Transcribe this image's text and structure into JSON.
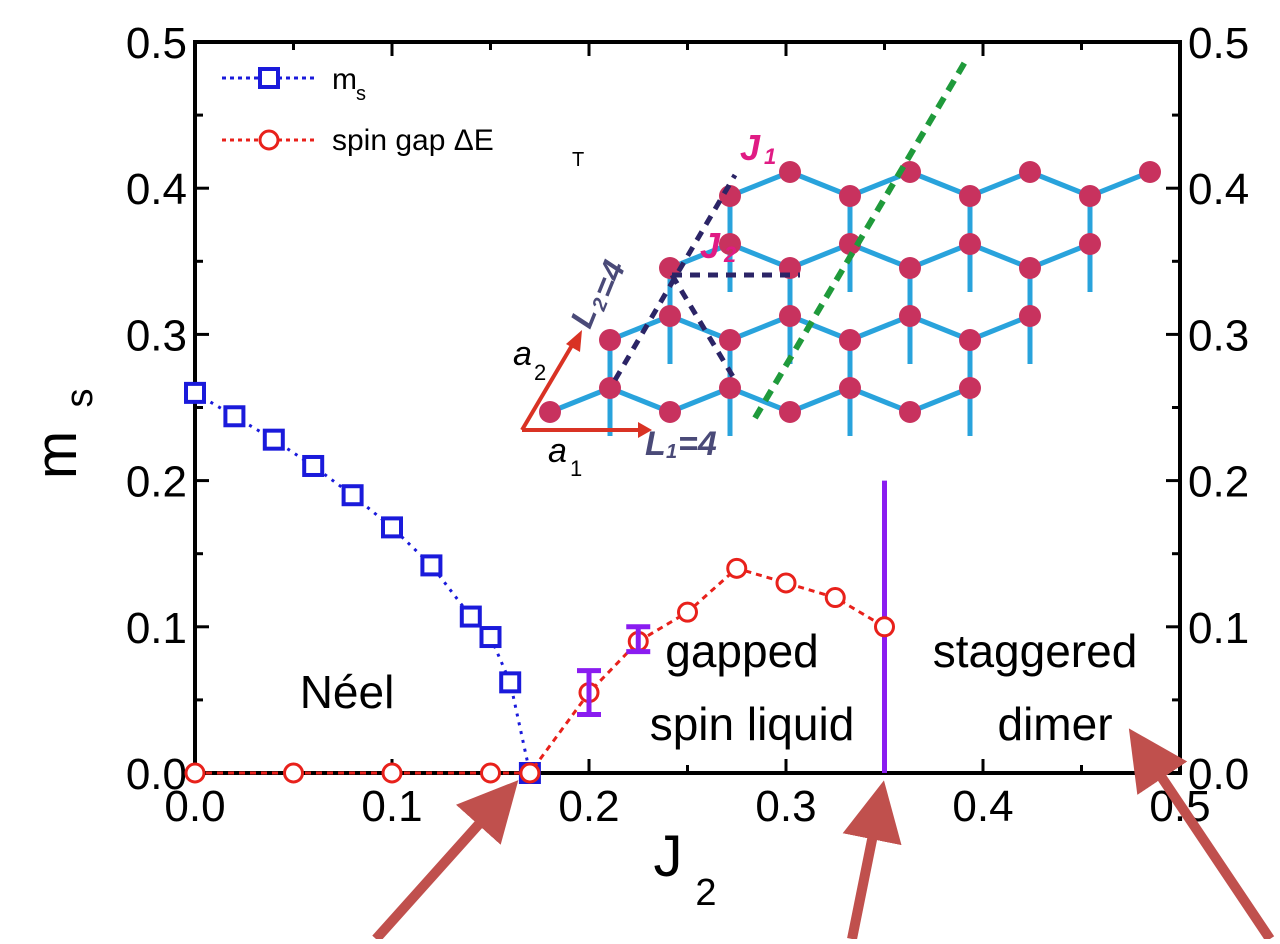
{
  "colors": {
    "ms": "#1a1adb",
    "gap": "#e8211b",
    "errorbar": "#8a1cf0",
    "boundary": "#8a1cf0",
    "arrow": "#c0504d",
    "bond": "#29a3dc",
    "site": "#c8325e",
    "dashed_dark": "#2b2466",
    "dashed_green": "#1f9a3b",
    "inset_J": "#e01b84",
    "inset_L": "#4a4a78",
    "inset_vec": "#d93224"
  },
  "chart_data": {
    "type": "line",
    "xlabel": "J",
    "xlabel_sub": "2",
    "ylabel": "m",
    "ylabel_sub": "s",
    "xlim": [
      0,
      0.5
    ],
    "ylim": [
      0,
      0.5
    ],
    "x_ticks": [
      "0.0",
      "0.1",
      "0.2",
      "0.3",
      "0.4",
      "0.5"
    ],
    "y_ticks_left": [
      "0.0",
      "0.1",
      "0.2",
      "0.3",
      "0.4",
      "0.5"
    ],
    "y_ticks_right": [
      "0.0",
      "0.1",
      "0.2",
      "0.3",
      "0.4",
      "0.5"
    ],
    "legend": {
      "placement": "top-left",
      "entries": [
        {
          "label": "m",
          "sub": "s"
        },
        {
          "label": "spin gap ΔE",
          "sub": "T"
        }
      ]
    },
    "series": [
      {
        "name": "m_s",
        "marker": "square",
        "x": [
          0.0,
          0.02,
          0.04,
          0.06,
          0.08,
          0.1,
          0.12,
          0.14,
          0.15,
          0.16,
          0.17
        ],
        "y": [
          0.26,
          0.244,
          0.228,
          0.21,
          0.19,
          0.168,
          0.142,
          0.107,
          0.093,
          0.062,
          0.0
        ]
      },
      {
        "name": "spin gap ΔE_T",
        "marker": "circle",
        "x": [
          0.0,
          0.05,
          0.1,
          0.15,
          0.17,
          0.2,
          0.225,
          0.25,
          0.275,
          0.3,
          0.325,
          0.35
        ],
        "y": [
          0.0,
          0.0,
          0.0,
          0.0,
          0.0,
          0.055,
          0.09,
          0.11,
          0.14,
          0.13,
          0.12,
          0.1
        ]
      }
    ],
    "error_bars": [
      {
        "x": 0.2,
        "low": 0.04,
        "high": 0.07
      },
      {
        "x": 0.225,
        "low": 0.083,
        "high": 0.1
      }
    ],
    "phase_boundary": {
      "x": 0.35,
      "y_top": 0.2
    },
    "regions": [
      {
        "lines": [
          "Néel"
        ]
      },
      {
        "lines": [
          "gapped",
          "spin liquid"
        ]
      },
      {
        "lines": [
          "staggered",
          "dimer"
        ]
      }
    ]
  },
  "inset": {
    "J1": "J",
    "J1_sub": "1",
    "J2": "J",
    "J2_sub": "2",
    "L1": "L",
    "L1_sub": "1",
    "L1_val": "=4",
    "L2": "L",
    "L2_sub": "2",
    "L2_val": "=4",
    "a1": "a",
    "a1_sub": "1",
    "a2": "a",
    "a2_sub": "2"
  }
}
